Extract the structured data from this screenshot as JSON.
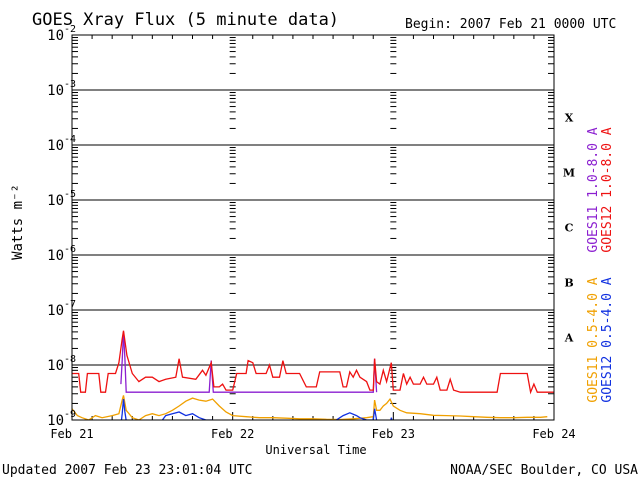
{
  "header": {
    "title": "GOES Xray Flux (5 minute data)",
    "begin": "Begin:  2007 Feb 21 0000 UTC"
  },
  "footer": {
    "updated": "Updated 2007 Feb 23 23:01:04 UTC",
    "source": "NOAA/SEC Boulder, CO USA"
  },
  "chart_data": {
    "type": "line",
    "title": "GOES Xray Flux (5 minute data)",
    "xlabel": "Universal Time",
    "ylabel": "Watts m⁻²",
    "yscale": "log",
    "ylim": [
      1e-09,
      0.01
    ],
    "xlim": [
      0,
      72
    ],
    "x_unit": "hours since 2007 Feb 21 0000 UTC",
    "x_ticks": [
      {
        "x": 0,
        "label": "Feb 21"
      },
      {
        "x": 24,
        "label": "Feb 22"
      },
      {
        "x": 48,
        "label": "Feb 23"
      },
      {
        "x": 72,
        "label": "Feb 24"
      }
    ],
    "y_ticks": [
      {
        "exp": -2,
        "label": "10"
      },
      {
        "exp": -3,
        "label": "10"
      },
      {
        "exp": -4,
        "label": "10"
      },
      {
        "exp": -5,
        "label": "10"
      },
      {
        "exp": -6,
        "label": "10"
      },
      {
        "exp": -7,
        "label": "10"
      },
      {
        "exp": -8,
        "label": "10"
      },
      {
        "exp": -9,
        "label": "10"
      }
    ],
    "flare_classes": [
      {
        "label": "X",
        "exp": -3.5
      },
      {
        "label": "M",
        "exp": -4.5
      },
      {
        "label": "C",
        "exp": -5.5
      },
      {
        "label": "B",
        "exp": -6.5
      },
      {
        "label": "A",
        "exp": -7.5
      }
    ],
    "grid": true,
    "legend_placement": "right",
    "series": [
      {
        "name": "GOES11 1.0-8.0 A",
        "color": "#8b1fd0",
        "points": [
          [
            7.3,
            4.5e-09
          ],
          [
            7.5,
            1.2e-08
          ],
          [
            7.7,
            4e-08
          ],
          [
            7.9,
            1.3e-08
          ],
          [
            8.1,
            3.2e-09
          ],
          [
            20.5,
            3.2e-09
          ],
          [
            20.8,
            1.2e-08
          ],
          [
            21.1,
            3.2e-09
          ],
          [
            45.0,
            3.2e-09
          ],
          [
            45.2,
            1.3e-08
          ],
          [
            45.5,
            3.2e-09
          ]
        ]
      },
      {
        "name": "GOES12 1.0-8.0 A",
        "color": "#ee1111",
        "points": [
          [
            0,
            7e-09
          ],
          [
            1,
            7e-09
          ],
          [
            1.3,
            3.2e-09
          ],
          [
            2,
            3.2e-09
          ],
          [
            2.3,
            7e-09
          ],
          [
            4,
            7e-09
          ],
          [
            4.3,
            3.2e-09
          ],
          [
            5,
            3.2e-09
          ],
          [
            5.4,
            7e-09
          ],
          [
            6.5,
            7e-09
          ],
          [
            7,
            1.1e-08
          ],
          [
            7.5,
            3e-08
          ],
          [
            7.7,
            4.2e-08
          ],
          [
            8.2,
            1.5e-08
          ],
          [
            9,
            7e-09
          ],
          [
            10,
            5e-09
          ],
          [
            11,
            6e-09
          ],
          [
            12,
            6e-09
          ],
          [
            13,
            5e-09
          ],
          [
            14,
            5.5e-09
          ],
          [
            15.5,
            6e-09
          ],
          [
            16,
            1.3e-08
          ],
          [
            16.5,
            6e-09
          ],
          [
            18.5,
            5.5e-09
          ],
          [
            19.5,
            8e-09
          ],
          [
            20,
            6.5e-09
          ],
          [
            20.8,
            1.1e-08
          ],
          [
            21.2,
            4e-09
          ],
          [
            22,
            4e-09
          ],
          [
            22.5,
            4.5e-09
          ],
          [
            23,
            3.5e-09
          ],
          [
            24,
            3.5e-09
          ],
          [
            24.6,
            7e-09
          ],
          [
            26,
            7e-09
          ],
          [
            26.3,
            1.2e-08
          ],
          [
            27,
            1.1e-08
          ],
          [
            27.5,
            7e-09
          ],
          [
            29,
            7e-09
          ],
          [
            29.5,
            1e-08
          ],
          [
            30,
            6e-09
          ],
          [
            31,
            6e-09
          ],
          [
            31.5,
            1.2e-08
          ],
          [
            32,
            7e-09
          ],
          [
            34,
            7e-09
          ],
          [
            35,
            4e-09
          ],
          [
            36.5,
            4e-09
          ],
          [
            37,
            7.5e-09
          ],
          [
            40,
            7.5e-09
          ],
          [
            40.5,
            4e-09
          ],
          [
            41,
            4e-09
          ],
          [
            41.5,
            7.5e-09
          ],
          [
            42,
            6e-09
          ],
          [
            42.5,
            8e-09
          ],
          [
            43,
            6e-09
          ],
          [
            44,
            5e-09
          ],
          [
            44.5,
            3.5e-09
          ],
          [
            45,
            3.5e-09
          ],
          [
            45.2,
            1.3e-08
          ],
          [
            45.5,
            5e-09
          ],
          [
            46,
            4.5e-09
          ],
          [
            46.5,
            8e-09
          ],
          [
            47,
            5e-09
          ],
          [
            47.7,
            1.1e-08
          ],
          [
            48,
            3.5e-09
          ],
          [
            49,
            3.5e-09
          ],
          [
            49.5,
            7e-09
          ],
          [
            50,
            4.5e-09
          ],
          [
            50.5,
            6e-09
          ],
          [
            51,
            4.5e-09
          ],
          [
            52,
            4.5e-09
          ],
          [
            52.5,
            6e-09
          ],
          [
            53,
            4.5e-09
          ],
          [
            54,
            4.5e-09
          ],
          [
            54.5,
            6e-09
          ],
          [
            55,
            3.5e-09
          ],
          [
            56,
            3.5e-09
          ],
          [
            56.5,
            5.5e-09
          ],
          [
            57,
            3.5e-09
          ],
          [
            58,
            3.2e-09
          ],
          [
            63.5,
            3.2e-09
          ],
          [
            64,
            7e-09
          ],
          [
            68,
            7e-09
          ],
          [
            68.5,
            3.2e-09
          ],
          [
            69,
            4.5e-09
          ],
          [
            69.5,
            3.2e-09
          ],
          [
            72,
            3.2e-09
          ]
        ]
      },
      {
        "name": "GOES11 0.5-4.0 A",
        "color": "#f0a000",
        "points": [
          [
            0,
            1.6e-09
          ],
          [
            0.8,
            1.2e-09
          ],
          [
            1.5,
            1.1e-09
          ],
          [
            2.5,
            1e-09
          ],
          [
            3.5,
            1.2e-09
          ],
          [
            4.5,
            1.1e-09
          ],
          [
            6,
            1.2e-09
          ],
          [
            7,
            1.3e-09
          ],
          [
            7.5,
            2.3e-09
          ],
          [
            7.7,
            2.8e-09
          ],
          [
            8.1,
            1.5e-09
          ],
          [
            9,
            1.1e-09
          ],
          [
            10,
            1e-09
          ],
          [
            11,
            1.2e-09
          ],
          [
            12,
            1.3e-09
          ],
          [
            13,
            1.2e-09
          ],
          [
            14,
            1.3e-09
          ],
          [
            15,
            1.5e-09
          ],
          [
            16,
            1.8e-09
          ],
          [
            17,
            2.2e-09
          ],
          [
            18,
            2.5e-09
          ],
          [
            19,
            2.3e-09
          ],
          [
            20,
            2.2e-09
          ],
          [
            21,
            2.4e-09
          ],
          [
            22,
            1.8e-09
          ],
          [
            23,
            1.4e-09
          ],
          [
            24,
            1.2e-09
          ],
          [
            26,
            1.15e-09
          ],
          [
            28,
            1.1e-09
          ],
          [
            30,
            1.1e-09
          ],
          [
            32,
            1.08e-09
          ],
          [
            34,
            1.05e-09
          ],
          [
            36,
            1.05e-09
          ],
          [
            38,
            1.03e-09
          ],
          [
            40,
            1.02e-09
          ],
          [
            42,
            1.05e-09
          ],
          [
            44,
            1.1e-09
          ],
          [
            45,
            1.15e-09
          ],
          [
            45.2,
            2.3e-09
          ],
          [
            45.5,
            1.5e-09
          ],
          [
            46,
            1.5e-09
          ],
          [
            46.5,
            1.8e-09
          ],
          [
            47,
            2e-09
          ],
          [
            47.5,
            2.4e-09
          ],
          [
            48,
            1.8e-09
          ],
          [
            49,
            1.5e-09
          ],
          [
            50,
            1.35e-09
          ],
          [
            52,
            1.3e-09
          ],
          [
            54,
            1.22e-09
          ],
          [
            56,
            1.2e-09
          ],
          [
            58,
            1.18e-09
          ],
          [
            60,
            1.15e-09
          ],
          [
            62,
            1.12e-09
          ],
          [
            64,
            1.1e-09
          ],
          [
            66,
            1.1e-09
          ],
          [
            68,
            1.12e-09
          ],
          [
            70,
            1.12e-09
          ],
          [
            71,
            1.15e-09
          ]
        ]
      },
      {
        "name": "GOES12 0.5-4.0 A",
        "color": "#1030e0",
        "points": [
          [
            7.3,
            8e-10
          ],
          [
            7.5,
            1.3e-09
          ],
          [
            7.7,
            2.4e-09
          ],
          [
            7.9,
            1.4e-09
          ],
          [
            8.2,
            8e-10
          ],
          [
            13,
            8e-10
          ],
          [
            13.5,
            1e-09
          ],
          [
            14,
            1.2e-09
          ],
          [
            15,
            1.3e-09
          ],
          [
            16,
            1.4e-09
          ],
          [
            17,
            1.2e-09
          ],
          [
            18,
            1.3e-09
          ],
          [
            19,
            1.1e-09
          ],
          [
            20,
            1e-09
          ],
          [
            21,
            1e-09
          ],
          [
            22,
            8e-10
          ],
          [
            39,
            8e-10
          ],
          [
            39.5,
            1e-09
          ],
          [
            40.5,
            1.2e-09
          ],
          [
            41.5,
            1.35e-09
          ],
          [
            42.5,
            1.2e-09
          ],
          [
            43,
            1.1e-09
          ],
          [
            44,
            1e-09
          ],
          [
            45,
            1e-09
          ],
          [
            45.2,
            1.6e-09
          ],
          [
            45.5,
            1e-09
          ],
          [
            46,
            8e-10
          ],
          [
            47.5,
            8e-10
          ],
          [
            47.7,
            1.1e-09
          ],
          [
            48,
            8e-10
          ]
        ]
      }
    ]
  }
}
